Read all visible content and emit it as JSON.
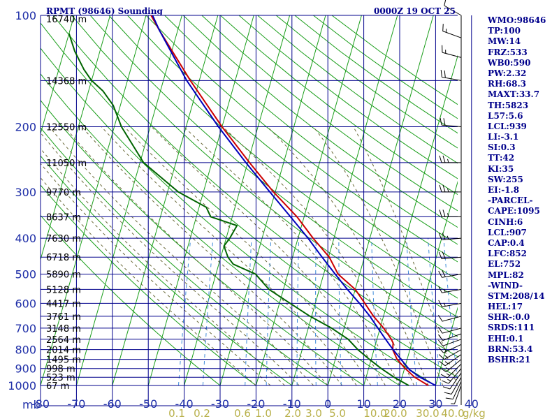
{
  "colors": {
    "background": "#ffffff",
    "grid": "#00008b",
    "isotherm": "#1a9e1a",
    "dry_adiabat": "#1a9e1a",
    "moist_adiabat": "#6a6a3a",
    "mixing_ratio": "#3d8ad8",
    "temperature": "#cc0000",
    "dewpoint": "#006400",
    "parcel": "#0000bb",
    "text": "#00008b",
    "axis_text": "#1f2fa8"
  },
  "chart_data": {
    "type": "skew-t log-p",
    "title": "RPMT (98646) Sounding",
    "valid_time": "0000Z 19 OCT 25",
    "pressure_axis": {
      "unit_label": "mb",
      "range": [
        1000,
        100
      ],
      "labeled_levels": [
        100,
        200,
        300,
        400,
        500,
        600,
        700,
        800,
        900,
        1000
      ],
      "grid_levels": [
        100,
        150,
        200,
        250,
        300,
        350,
        400,
        450,
        500,
        550,
        600,
        650,
        700,
        750,
        800,
        850,
        900,
        950,
        1000
      ]
    },
    "temperature_axis": {
      "unit": "C",
      "range": [
        -80,
        40
      ],
      "ticks": [
        -80,
        -70,
        -60,
        -50,
        -40,
        -30,
        -20,
        -10,
        0,
        10,
        20,
        30,
        40
      ],
      "labels": [
        "-80",
        "-70",
        "-60",
        "-50",
        "-40",
        "-30",
        "-20",
        "-10",
        "0",
        "10",
        "20",
        "30",
        "40"
      ]
    },
    "mixing_ratio_axis": {
      "unit": "g/kg",
      "values": [
        0.1,
        0.2,
        0.6,
        1.0,
        2.0,
        3.0,
        5.0,
        10.0,
        20.0,
        30.0,
        40.0
      ],
      "labels": [
        "0.1",
        "0.2",
        "0.6",
        "1.0",
        "2.0",
        "3.0",
        "5.0",
        "10.0",
        "20.0",
        "30.0",
        "40.0"
      ],
      "unit_label": "g/kg"
    },
    "height_labels": [
      {
        "p": 100,
        "text": "16740 m"
      },
      {
        "p": 150,
        "text": "14368 m"
      },
      {
        "p": 200,
        "text": "12550 m"
      },
      {
        "p": 250,
        "text": "11050 m"
      },
      {
        "p": 300,
        "text": "9770 m"
      },
      {
        "p": 350,
        "text": "8637 m"
      },
      {
        "p": 400,
        "text": "7630 m"
      },
      {
        "p": 450,
        "text": "6718 m"
      },
      {
        "p": 500,
        "text": "5890 m"
      },
      {
        "p": 550,
        "text": "5128 m"
      },
      {
        "p": 600,
        "text": "4417 m"
      },
      {
        "p": 650,
        "text": "3761 m"
      },
      {
        "p": 700,
        "text": "3148 m"
      },
      {
        "p": 750,
        "text": "2564 m"
      },
      {
        "p": 800,
        "text": "2014 m"
      },
      {
        "p": 850,
        "text": "1495 m"
      },
      {
        "p": 900,
        "text": "998 m"
      },
      {
        "p": 950,
        "text": "523 m"
      },
      {
        "p": 1000,
        "text": "67 m"
      }
    ],
    "series": [
      {
        "name": "temperature",
        "points": [
          [
            1000,
            28.0
          ],
          [
            950,
            23.5
          ],
          [
            900,
            20.2
          ],
          [
            850,
            17.2
          ],
          [
            800,
            15.2
          ],
          [
            768,
            14.8
          ],
          [
            750,
            14.0
          ],
          [
            700,
            11.0
          ],
          [
            650,
            7.2
          ],
          [
            600,
            3.8
          ],
          [
            550,
            0.0
          ],
          [
            500,
            -6.0
          ],
          [
            450,
            -9.8
          ],
          [
            400,
            -15.8
          ],
          [
            350,
            -22.0
          ],
          [
            300,
            -30.5
          ],
          [
            250,
            -39.5
          ],
          [
            200,
            -50.0
          ],
          [
            150,
            -62.5
          ],
          [
            110,
            -75.0
          ],
          [
            100,
            -78.6
          ]
        ]
      },
      {
        "name": "dewpoint",
        "points": [
          [
            1000,
            22.5
          ],
          [
            950,
            17.8
          ],
          [
            900,
            13.5
          ],
          [
            850,
            9.5
          ],
          [
            800,
            5.5
          ],
          [
            750,
            2.0
          ],
          [
            700,
            -3.5
          ],
          [
            650,
            -10.5
          ],
          [
            600,
            -17.0
          ],
          [
            550,
            -24.0
          ],
          [
            500,
            -29.0
          ],
          [
            470,
            -36.0
          ],
          [
            450,
            -38.0
          ],
          [
            420,
            -40.0
          ],
          [
            400,
            -39.0
          ],
          [
            370,
            -38.0
          ],
          [
            350,
            -46.0
          ],
          [
            330,
            -48.0
          ],
          [
            300,
            -57.0
          ],
          [
            250,
            -69.0
          ],
          [
            200,
            -78.0
          ],
          [
            175,
            -82.0
          ],
          [
            160,
            -86.0
          ],
          [
            150,
            -90.0
          ],
          [
            140,
            -93.0
          ],
          [
            125,
            -97.0
          ],
          [
            112,
            -100.0
          ]
        ]
      },
      {
        "name": "parcel",
        "points": [
          [
            1000,
            30.0
          ],
          [
            950,
            25.0
          ],
          [
            907,
            21.5
          ],
          [
            850,
            18.3
          ],
          [
            800,
            15.3
          ],
          [
            750,
            12.4
          ],
          [
            700,
            9.4
          ],
          [
            650,
            6.2
          ],
          [
            600,
            2.3
          ],
          [
            550,
            -2.2
          ],
          [
            500,
            -6.8
          ],
          [
            450,
            -11.8
          ],
          [
            400,
            -17.2
          ],
          [
            350,
            -23.8
          ],
          [
            300,
            -31.5
          ],
          [
            250,
            -40.5
          ],
          [
            200,
            -51.0
          ],
          [
            150,
            -63.5
          ],
          [
            110,
            -75.0
          ],
          [
            100,
            -78.2
          ]
        ]
      }
    ],
    "wind_barbs": [
      {
        "p": 1000,
        "dir": 200,
        "spd": 5
      },
      {
        "p": 975,
        "dir": 205,
        "spd": 10
      },
      {
        "p": 950,
        "dir": 210,
        "spd": 10
      },
      {
        "p": 925,
        "dir": 215,
        "spd": 10
      },
      {
        "p": 900,
        "dir": 220,
        "spd": 15
      },
      {
        "p": 875,
        "dir": 225,
        "spd": 15
      },
      {
        "p": 850,
        "dir": 230,
        "spd": 15
      },
      {
        "p": 825,
        "dir": 235,
        "spd": 15
      },
      {
        "p": 800,
        "dir": 240,
        "spd": 15
      },
      {
        "p": 775,
        "dir": 245,
        "spd": 15
      },
      {
        "p": 750,
        "dir": 250,
        "spd": 10
      },
      {
        "p": 725,
        "dir": 250,
        "spd": 10
      },
      {
        "p": 700,
        "dir": 255,
        "spd": 10
      },
      {
        "p": 650,
        "dir": 255,
        "spd": 10
      },
      {
        "p": 600,
        "dir": 260,
        "spd": 15
      },
      {
        "p": 550,
        "dir": 260,
        "spd": 15
      },
      {
        "p": 500,
        "dir": 260,
        "spd": 20
      },
      {
        "p": 450,
        "dir": 265,
        "spd": 20
      },
      {
        "p": 400,
        "dir": 265,
        "spd": 25
      },
      {
        "p": 350,
        "dir": 270,
        "spd": 25
      },
      {
        "p": 300,
        "dir": 270,
        "spd": 25
      },
      {
        "p": 250,
        "dir": 270,
        "spd": 25
      },
      {
        "p": 200,
        "dir": 275,
        "spd": 20
      },
      {
        "p": 150,
        "dir": 280,
        "spd": 20
      },
      {
        "p": 130,
        "dir": 285,
        "spd": 15
      },
      {
        "p": 115,
        "dir": 290,
        "spd": 15
      },
      {
        "p": 100,
        "dir": 300,
        "spd": 10
      }
    ]
  },
  "indices": [
    "WMO:98646",
    "TP:100",
    "MW:14",
    "FRZ:533",
    "WB0:590",
    "PW:2.32",
    "RH:68.3",
    "MAXT:33.7",
    "TH:5823",
    "L57:5.6",
    "LCL:939",
    "LI:-3.1",
    "SI:0.3",
    "TT:42",
    "KI:35",
    "SW:255",
    "EI:-1.8",
    "-PARCEL-",
    "CAPE:1095",
    "CINH:6",
    "LCL:907",
    "CAP:0.4",
    "LFC:852",
    "EL:752",
    "MPL:82",
    "-WIND-",
    "STM:208/14",
    "HEL:17",
    "SHR-:0.0",
    "SRDS:111",
    "EHI:0.1",
    "BRN:53.4",
    "BSHR:21"
  ]
}
